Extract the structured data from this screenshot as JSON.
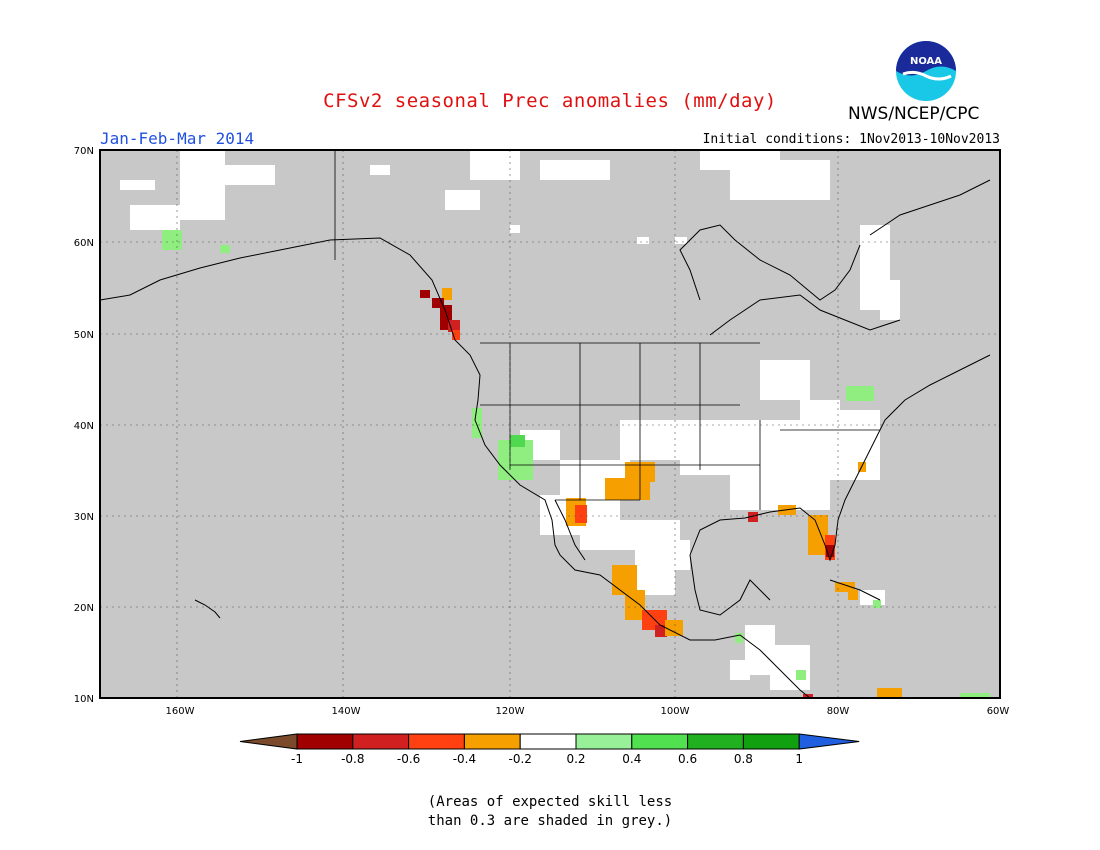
{
  "header": {
    "title": "CFSv2 seasonal Prec anomalies (mm/day)",
    "period": "Jan-Feb-Mar 2014",
    "initial_conditions": "Initial conditions: 1Nov2013-10Nov2013",
    "organization": "NWS/NCEP/CPC",
    "logo_text": "NOAA"
  },
  "map": {
    "lon_ticks": [
      "160W",
      "140W",
      "120W",
      "100W",
      "80W",
      "60W"
    ],
    "lat_ticks": [
      "70N",
      "60N",
      "50N",
      "40N",
      "30N",
      "20N",
      "10N"
    ],
    "colors": {
      "ocean_grey": "#c8c8c8",
      "land_white": "#ffffff",
      "dry_dark": "#a00000",
      "dry_red": "#e03010",
      "dry_orange": "#f5a000",
      "wet_light": "#90ee80",
      "wet_mid": "#50d850",
      "wet_dark": "#18a018"
    }
  },
  "colorbar": {
    "labels": [
      "-1",
      "-0.8",
      "-0.6",
      "-0.4",
      "-0.2",
      "0.2",
      "0.4",
      "0.6",
      "0.8",
      "1"
    ],
    "colors": [
      "#7a4a2a",
      "#a00000",
      "#d02020",
      "#ff4010",
      "#f5a000",
      "#ffffff",
      "#98f098",
      "#50e050",
      "#20b020",
      "#10a010",
      "#2060e0"
    ]
  },
  "footnote": {
    "line1": "(Areas of expected skill less",
    "line2": "than 0.3 are shaded in grey.)"
  }
}
